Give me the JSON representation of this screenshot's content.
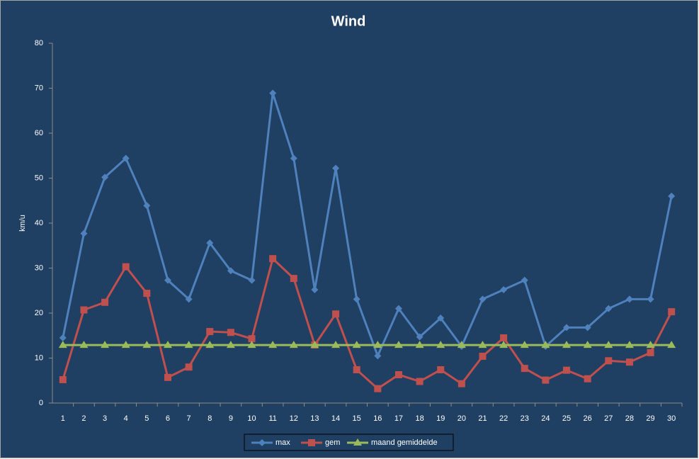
{
  "chart_data": {
    "type": "line",
    "title": "Wind",
    "y_label": "km/u",
    "categories": [
      "1",
      "2",
      "3",
      "4",
      "5",
      "6",
      "7",
      "8",
      "9",
      "10",
      "11",
      "12",
      "13",
      "14",
      "15",
      "16",
      "17",
      "18",
      "19",
      "20",
      "21",
      "22",
      "23",
      "24",
      "25",
      "26",
      "27",
      "28",
      "29",
      "30"
    ],
    "series": [
      {
        "name": "max",
        "color": "#4f81bd",
        "marker": "diamond",
        "values": [
          14.5,
          37.7,
          50.2,
          54.4,
          43.9,
          27.3,
          23.1,
          35.6,
          29.4,
          27.3,
          68.9,
          54.4,
          25.2,
          52.2,
          23.1,
          10.5,
          21.0,
          14.7,
          18.9,
          12.6,
          23.1,
          25.2,
          27.3,
          12.6,
          16.8,
          16.8,
          21.0,
          23.1,
          23.1,
          46.0
        ]
      },
      {
        "name": "gem",
        "color": "#c0504d",
        "marker": "square",
        "values": [
          5.2,
          20.7,
          22.4,
          30.3,
          24.4,
          5.7,
          8.0,
          15.9,
          15.7,
          14.3,
          32.1,
          27.7,
          12.9,
          19.8,
          7.4,
          3.2,
          6.3,
          4.8,
          7.4,
          4.3,
          10.4,
          14.5,
          7.7,
          5.1,
          7.3,
          5.4,
          9.4,
          9.1,
          11.2,
          20.3
        ]
      },
      {
        "name": "maand gemiddelde",
        "color": "#9bbb59",
        "marker": "triangle",
        "values": [
          12.9,
          12.9,
          12.9,
          12.9,
          12.9,
          12.9,
          12.9,
          12.9,
          12.9,
          12.9,
          12.9,
          12.9,
          12.9,
          12.9,
          12.9,
          12.9,
          12.9,
          12.9,
          12.9,
          12.9,
          12.9,
          12.9,
          12.9,
          12.9,
          12.9,
          12.9,
          12.9,
          12.9,
          12.9,
          12.9
        ]
      }
    ],
    "ylim": [
      0,
      80
    ],
    "yticks": [
      0,
      10,
      20,
      30,
      40,
      50,
      60,
      70,
      80
    ],
    "grid": false,
    "legend": "bottom"
  }
}
